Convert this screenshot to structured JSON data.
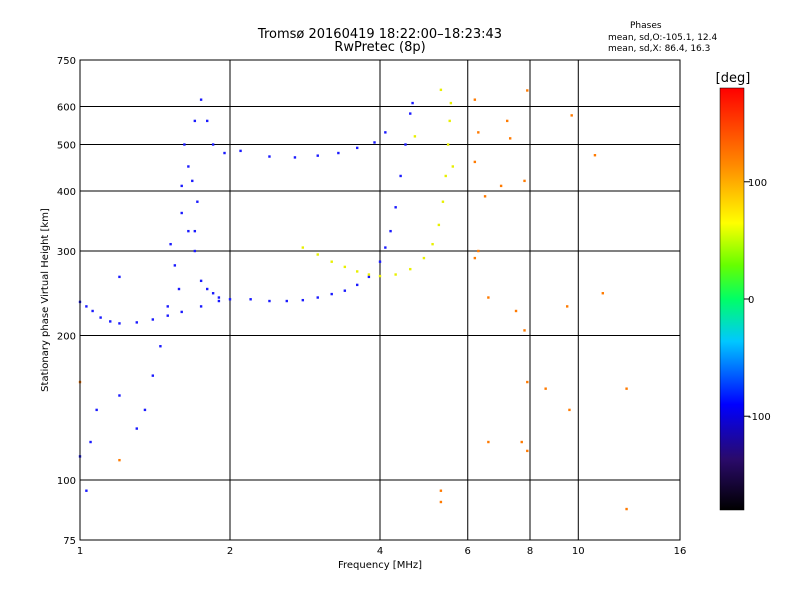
{
  "chart_data": {
    "type": "scatter",
    "title": "Tromsø 20160419 18:22:00–18:23:43",
    "subtitle": "RwPretec (8p)",
    "phase_stats": {
      "heading": "Phases",
      "line_o": "mean, sd,O:-105.1, 12.4",
      "line_x": "mean, sd,X:  86.4, 16.3"
    },
    "xlabel": "Frequency [MHz]",
    "ylabel": "Stationary phase Virtual Height [km]",
    "x_scale": "log",
    "y_scale": "log",
    "xlim": [
      1,
      16
    ],
    "ylim": [
      75,
      750
    ],
    "x_ticks": [
      1,
      2,
      4,
      6,
      8,
      10,
      16
    ],
    "y_ticks": [
      75,
      100,
      200,
      300,
      400,
      500,
      600,
      750
    ],
    "x_grid": [
      2,
      4,
      6,
      8,
      10
    ],
    "y_grid": [
      100,
      200,
      300,
      400,
      500,
      600
    ],
    "grid": true,
    "colorbar": {
      "label": "[deg]",
      "range": [
        -180,
        180
      ],
      "ticks": [
        100,
        0,
        -100
      ]
    },
    "series": [
      {
        "points": [
          [
            1.0,
            235
          ],
          [
            1.03,
            230
          ],
          [
            1.06,
            225
          ],
          [
            1.1,
            218
          ],
          [
            1.15,
            214
          ],
          [
            1.2,
            212
          ],
          [
            1.3,
            213
          ],
          [
            1.4,
            216
          ],
          [
            1.5,
            220
          ],
          [
            1.6,
            224
          ],
          [
            1.75,
            230
          ],
          [
            1.9,
            236
          ],
          [
            2.0,
            238
          ],
          [
            2.2,
            238
          ],
          [
            2.4,
            236
          ],
          [
            2.6,
            236
          ],
          [
            2.8,
            237
          ],
          [
            3.0,
            240
          ],
          [
            3.2,
            244
          ],
          [
            3.4,
            248
          ],
          [
            3.6,
            255
          ],
          [
            3.8,
            265
          ],
          [
            4.0,
            285
          ],
          [
            4.1,
            305
          ],
          [
            4.2,
            330
          ],
          [
            4.3,
            370
          ],
          [
            4.4,
            430
          ],
          [
            4.5,
            500
          ],
          [
            4.6,
            580
          ],
          [
            4.65,
            610
          ],
          [
            1.0,
            112
          ],
          [
            1.05,
            120
          ],
          [
            1.08,
            140
          ],
          [
            1.2,
            150
          ],
          [
            1.3,
            128
          ],
          [
            1.35,
            140
          ],
          [
            1.4,
            165
          ],
          [
            1.45,
            190
          ],
          [
            1.5,
            230
          ],
          [
            1.55,
            280
          ],
          [
            1.6,
            360
          ],
          [
            1.65,
            450
          ],
          [
            1.7,
            560
          ],
          [
            1.75,
            620
          ],
          [
            1.8,
            560
          ],
          [
            1.85,
            500
          ],
          [
            1.95,
            480
          ],
          [
            2.1,
            485
          ],
          [
            2.4,
            472
          ],
          [
            2.7,
            470
          ],
          [
            3.0,
            474
          ],
          [
            3.3,
            480
          ],
          [
            3.6,
            492
          ],
          [
            3.9,
            505
          ],
          [
            4.1,
            530
          ],
          [
            1.6,
            410
          ],
          [
            1.65,
            330
          ],
          [
            1.7,
            300
          ],
          [
            1.75,
            260
          ],
          [
            1.8,
            250
          ],
          [
            1.85,
            245
          ],
          [
            1.9,
            240
          ],
          [
            1.62,
            500
          ],
          [
            1.58,
            250
          ],
          [
            1.52,
            310
          ],
          [
            1.03,
            95
          ],
          [
            1.2,
            265
          ],
          [
            1.7,
            330
          ],
          [
            1.68,
            420
          ],
          [
            1.72,
            380
          ]
        ]
      },
      {
        "points": [
          [
            2.8,
            305
          ],
          [
            3.0,
            295
          ],
          [
            3.2,
            285
          ],
          [
            3.4,
            278
          ],
          [
            3.6,
            272
          ],
          [
            3.8,
            268
          ],
          [
            4.0,
            266
          ],
          [
            4.3,
            268
          ],
          [
            4.6,
            275
          ],
          [
            4.9,
            290
          ],
          [
            5.1,
            310
          ],
          [
            5.25,
            340
          ],
          [
            5.35,
            380
          ],
          [
            5.42,
            430
          ],
          [
            5.48,
            500
          ],
          [
            5.52,
            560
          ],
          [
            5.55,
            610
          ],
          [
            5.3,
            650
          ],
          [
            4.7,
            520
          ],
          [
            5.6,
            450
          ]
        ]
      },
      {
        "points": [
          [
            6.2,
            620
          ],
          [
            6.2,
            460
          ],
          [
            6.3,
            530
          ],
          [
            6.5,
            390
          ],
          [
            6.6,
            240
          ],
          [
            7.0,
            410
          ],
          [
            7.2,
            560
          ],
          [
            7.3,
            515
          ],
          [
            7.5,
            225
          ],
          [
            7.8,
            205
          ],
          [
            7.8,
            420
          ],
          [
            7.9,
            648
          ],
          [
            7.9,
            160
          ],
          [
            7.7,
            120
          ],
          [
            7.9,
            115
          ],
          [
            8.6,
            155
          ],
          [
            9.5,
            230
          ],
          [
            9.6,
            140
          ],
          [
            9.7,
            575
          ],
          [
            10.8,
            475
          ],
          [
            11.2,
            245
          ],
          [
            12.5,
            155
          ],
          [
            12.5,
            87
          ],
          [
            5.3,
            95
          ],
          [
            5.3,
            90
          ],
          [
            6.2,
            290
          ],
          [
            6.3,
            300
          ],
          [
            6.6,
            120
          ],
          [
            1.0,
            160
          ],
          [
            1.2,
            110
          ]
        ]
      }
    ]
  }
}
